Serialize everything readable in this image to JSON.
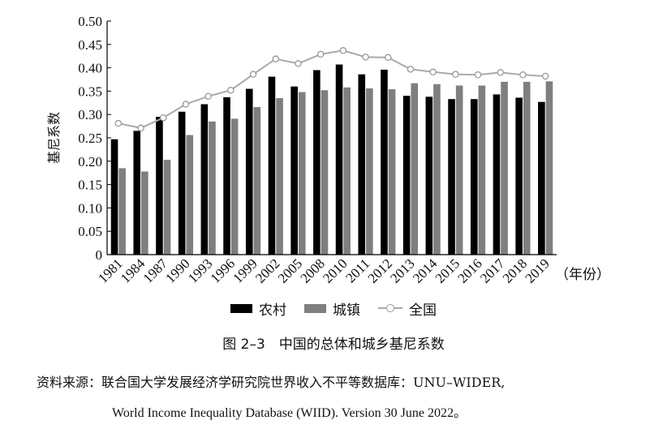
{
  "chart_data": {
    "type": "bar",
    "categories": [
      "1981",
      "1984",
      "1987",
      "1990",
      "1993",
      "1996",
      "1999",
      "2002",
      "2005",
      "2008",
      "2010",
      "2011",
      "2012",
      "2013",
      "2014",
      "2015",
      "2016",
      "2017",
      "2018",
      "2019"
    ],
    "series": [
      {
        "name": "农村",
        "kind": "bar",
        "color": "#000000",
        "values": [
          0.247,
          0.265,
          0.295,
          0.306,
          0.322,
          0.337,
          0.355,
          0.381,
          0.36,
          0.395,
          0.407,
          0.386,
          0.396,
          0.34,
          0.338,
          0.333,
          0.333,
          0.343,
          0.336,
          0.327
        ]
      },
      {
        "name": "城镇",
        "kind": "bar",
        "color": "#7f7f7f",
        "values": [
          0.185,
          0.178,
          0.203,
          0.256,
          0.285,
          0.291,
          0.316,
          0.335,
          0.348,
          0.352,
          0.358,
          0.356,
          0.354,
          0.367,
          0.365,
          0.362,
          0.362,
          0.37,
          0.37,
          0.371
        ]
      },
      {
        "name": "全国",
        "kind": "line",
        "color": "#aaaaaa",
        "values": [
          0.281,
          0.271,
          0.293,
          0.322,
          0.339,
          0.352,
          0.386,
          0.419,
          0.409,
          0.429,
          0.437,
          0.423,
          0.422,
          0.397,
          0.391,
          0.386,
          0.385,
          0.39,
          0.385,
          0.382
        ]
      }
    ],
    "ylabel": "基尼系数",
    "xunit": "（年份）",
    "ylim": [
      0,
      0.5
    ],
    "yticks": [
      "0",
      "0.05",
      "0.10",
      "0.15",
      "0.20",
      "0.25",
      "0.30",
      "0.35",
      "0.40",
      "0.45",
      "0.50"
    ],
    "legend_position": "bottom",
    "grid": false
  },
  "caption": "图 2–3　中国的总体和城乡基尼系数",
  "source_line1": "资料来源：联合国大学发展经济学研究院世界收入不平等数据库：UNU–WIDER,",
  "source_line2": "World Income Inequality Database (WIID). Version 30 June 2022。"
}
